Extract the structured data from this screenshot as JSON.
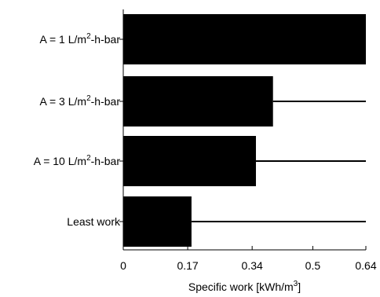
{
  "chart_data": {
    "type": "bar",
    "orientation": "horizontal",
    "categories": [
      {
        "prefix": "A = 1 L/m",
        "sup": "2",
        "suffix": "-h-bar"
      },
      {
        "prefix": "A = 3 L/m",
        "sup": "2",
        "suffix": "-h-bar"
      },
      {
        "prefix": "A = 10 L/m",
        "sup": "2",
        "suffix": "-h-bar"
      },
      {
        "prefix": "Least work",
        "sup": "",
        "suffix": ""
      }
    ],
    "values": [
      0.64,
      0.395,
      0.35,
      0.18
    ],
    "reference_line_end": 0.64,
    "xlim": [
      0,
      0.64
    ],
    "xticks": [
      0,
      0.17,
      0.34,
      0.5,
      0.64
    ],
    "xtick_labels": [
      "0",
      "0.17",
      "0.34",
      "0.5",
      "0.64"
    ],
    "xlabel": {
      "prefix": "Specific work [kWh/m",
      "sup": "3",
      "suffix": "]"
    },
    "title": "",
    "ylabel": "",
    "grid": false,
    "colors": {
      "bar": "#000000",
      "axis": "#000000",
      "background": "#ffffff"
    }
  }
}
